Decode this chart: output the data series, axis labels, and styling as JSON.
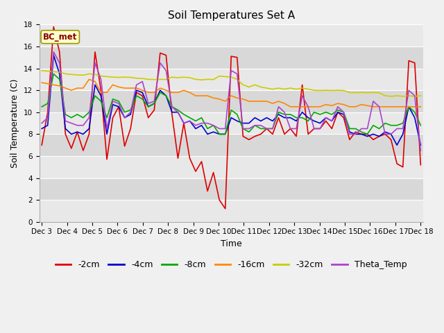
{
  "title": "Soil Temperatures Set A",
  "xlabel": "Time",
  "ylabel": "Soil Temperature (C)",
  "ylim": [
    0,
    18
  ],
  "yticks": [
    0,
    2,
    4,
    6,
    8,
    10,
    12,
    14,
    16,
    18
  ],
  "x_labels": [
    "Dec 3",
    "Dec 4",
    "Dec 5",
    "Dec 6",
    "Dec 7",
    "Dec 8",
    "Dec 9",
    "Dec 10",
    "Dec 11",
    "Dec 12",
    "Dec 13",
    "Dec 14",
    "Dec 15",
    "Dec 16",
    "Dec 17",
    "Dec 18"
  ],
  "annotation": "BC_met",
  "series": {
    "-2cm": {
      "color": "#dd0000",
      "values": [
        7.0,
        10.0,
        17.8,
        15.5,
        8.0,
        6.7,
        8.2,
        6.5,
        8.0,
        15.5,
        12.0,
        5.7,
        9.5,
        10.5,
        6.9,
        8.5,
        11.8,
        11.5,
        9.5,
        10.2,
        15.4,
        15.2,
        9.8,
        5.8,
        9.0,
        5.8,
        4.6,
        5.5,
        2.8,
        4.5,
        2.0,
        1.2,
        15.1,
        15.0,
        7.8,
        7.5,
        7.8,
        8.0,
        8.5,
        8.0,
        9.5,
        8.0,
        8.5,
        7.8,
        12.5,
        8.0,
        8.5,
        8.5,
        9.2,
        8.5,
        10.0,
        9.5,
        7.5,
        8.2,
        8.0,
        8.0,
        7.5,
        7.8,
        8.0,
        7.5,
        5.3,
        5.0,
        14.7,
        14.5,
        5.2
      ]
    },
    "-4cm": {
      "color": "#0000cc",
      "values": [
        8.5,
        8.8,
        15.2,
        13.5,
        8.5,
        8.0,
        8.2,
        8.0,
        8.5,
        12.5,
        11.5,
        8.0,
        10.7,
        10.5,
        9.5,
        9.8,
        12.0,
        11.8,
        10.5,
        10.8,
        12.0,
        11.5,
        10.0,
        10.0,
        9.0,
        9.2,
        8.5,
        8.8,
        8.0,
        8.2,
        8.0,
        8.0,
        9.5,
        9.2,
        9.0,
        9.0,
        9.5,
        9.2,
        9.5,
        9.2,
        9.8,
        9.5,
        9.5,
        9.2,
        10.0,
        9.5,
        9.2,
        9.0,
        9.5,
        9.2,
        10.0,
        9.8,
        8.2,
        8.0,
        8.0,
        7.8,
        8.0,
        7.8,
        8.2,
        8.0,
        7.0,
        8.0,
        10.5,
        9.5,
        7.0
      ]
    },
    "-8cm": {
      "color": "#00aa00",
      "values": [
        10.5,
        10.8,
        13.5,
        13.0,
        9.8,
        9.5,
        9.8,
        9.5,
        10.0,
        11.5,
        11.0,
        9.5,
        11.2,
        11.0,
        10.0,
        10.2,
        11.5,
        11.2,
        10.5,
        10.8,
        11.8,
        11.5,
        10.5,
        10.2,
        9.8,
        9.5,
        9.2,
        9.5,
        8.5,
        8.8,
        8.0,
        8.0,
        10.2,
        9.8,
        8.5,
        8.2,
        8.8,
        8.5,
        8.5,
        8.5,
        10.0,
        9.8,
        9.8,
        9.5,
        9.5,
        9.2,
        10.0,
        9.8,
        10.0,
        9.8,
        10.2,
        10.0,
        8.5,
        8.5,
        8.2,
        8.0,
        8.8,
        8.5,
        9.0,
        8.8,
        8.8,
        9.0,
        10.5,
        10.0,
        8.8
      ]
    },
    "-16cm": {
      "color": "#ff8800",
      "values": [
        12.7,
        12.6,
        12.5,
        12.4,
        12.2,
        12.0,
        12.2,
        12.2,
        13.0,
        12.8,
        11.8,
        11.8,
        12.5,
        12.3,
        12.2,
        12.2,
        12.2,
        12.0,
        11.8,
        11.8,
        12.2,
        12.0,
        11.8,
        11.8,
        12.0,
        11.8,
        11.5,
        11.5,
        11.5,
        11.3,
        11.2,
        11.0,
        11.5,
        11.3,
        11.2,
        11.0,
        11.0,
        11.0,
        11.0,
        10.8,
        11.0,
        10.8,
        10.5,
        10.5,
        10.5,
        10.5,
        10.5,
        10.5,
        10.7,
        10.6,
        10.8,
        10.7,
        10.5,
        10.5,
        10.7,
        10.6,
        10.5,
        10.5,
        10.5,
        10.5,
        10.5,
        10.5,
        10.5,
        10.5,
        10.5
      ]
    },
    "-32cm": {
      "color": "#cccc00",
      "values": [
        13.8,
        13.75,
        13.7,
        13.65,
        13.5,
        13.45,
        13.4,
        13.38,
        13.5,
        13.45,
        13.3,
        13.25,
        13.2,
        13.18,
        13.2,
        13.18,
        13.1,
        13.08,
        13.0,
        12.98,
        13.0,
        12.98,
        13.2,
        13.15,
        13.2,
        13.15,
        13.0,
        12.95,
        13.0,
        12.98,
        13.3,
        13.25,
        13.2,
        13.0,
        12.5,
        12.3,
        12.5,
        12.3,
        12.2,
        12.1,
        12.2,
        12.1,
        12.2,
        12.1,
        12.2,
        12.1,
        12.0,
        11.98,
        12.0,
        11.98,
        12.0,
        11.98,
        11.8,
        11.78,
        11.8,
        11.78,
        11.8,
        11.78,
        11.5,
        11.45,
        11.5,
        11.45,
        11.5,
        11.45,
        11.5
      ]
    },
    "Theta_Temp": {
      "color": "#aa44cc",
      "values": [
        9.0,
        9.5,
        15.5,
        14.5,
        9.2,
        9.0,
        8.8,
        8.8,
        9.5,
        14.5,
        13.0,
        8.5,
        11.0,
        10.8,
        9.5,
        10.0,
        12.5,
        12.8,
        10.8,
        11.0,
        14.5,
        13.8,
        10.5,
        10.0,
        9.0,
        9.2,
        8.8,
        9.0,
        9.0,
        8.8,
        8.5,
        8.5,
        13.8,
        13.5,
        8.5,
        8.5,
        8.8,
        8.8,
        8.5,
        8.5,
        10.5,
        10.0,
        8.5,
        8.5,
        11.5,
        10.5,
        8.5,
        8.5,
        9.5,
        9.2,
        10.5,
        10.0,
        8.0,
        8.0,
        8.5,
        8.5,
        11.0,
        10.5,
        8.0,
        8.0,
        8.5,
        8.5,
        12.0,
        11.5,
        6.5
      ]
    }
  },
  "background_color": "#f0f0f0",
  "plot_bg_color": "#e8e8e8",
  "band_colors": [
    "#e8e8e8",
    "#d8d8d8"
  ],
  "grid_color": "#ffffff",
  "title_fontsize": 11,
  "axis_label_fontsize": 9,
  "tick_fontsize": 7.5,
  "legend_fontsize": 9
}
